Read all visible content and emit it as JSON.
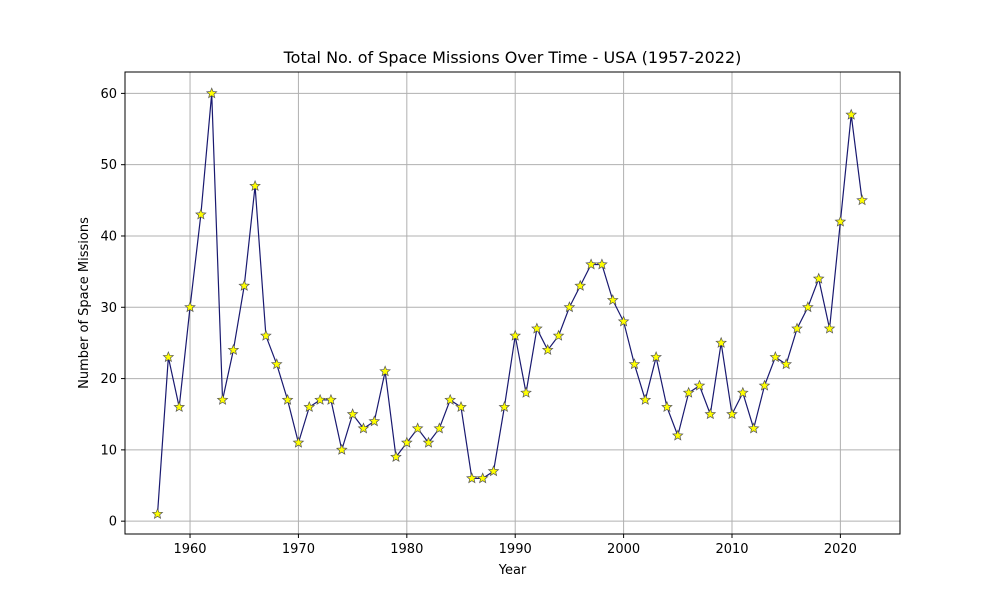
{
  "chart_data": {
    "type": "line",
    "title": "Total No. of Space Missions Over Time - USA (1957-2022)",
    "xlabel": "Year",
    "ylabel": "Number of Space Missions",
    "xlim": [
      1954,
      2025.5
    ],
    "ylim": [
      -1.8,
      63
    ],
    "xticks": [
      1960,
      1970,
      1980,
      1990,
      2000,
      2010,
      2020
    ],
    "yticks": [
      0,
      10,
      20,
      30,
      40,
      50,
      60
    ],
    "grid": true,
    "line_color": "#191970",
    "marker": "star",
    "marker_fill": "#ffff00",
    "marker_edge": "#555555",
    "series": [
      {
        "x": [
          1957,
          1958,
          1959,
          1960,
          1961,
          1962,
          1963,
          1964,
          1965,
          1966,
          1967,
          1968,
          1969,
          1970,
          1971,
          1972,
          1973,
          1974,
          1975,
          1976,
          1977,
          1978,
          1979,
          1980,
          1981,
          1982,
          1983,
          1984,
          1985,
          1986,
          1987,
          1988,
          1989,
          1990,
          1991,
          1992,
          1993,
          1994,
          1995,
          1996,
          1997,
          1998,
          1999,
          2000,
          2001,
          2002,
          2003,
          2004,
          2005,
          2006,
          2007,
          2008,
          2009,
          2010,
          2011,
          2012,
          2013,
          2014,
          2015,
          2016,
          2017,
          2018,
          2019,
          2020,
          2021,
          2022
        ],
        "values": [
          1,
          23,
          16,
          30,
          43,
          60,
          17,
          24,
          33,
          47,
          26,
          22,
          17,
          11,
          16,
          17,
          17,
          10,
          15,
          13,
          14,
          21,
          9,
          11,
          13,
          11,
          13,
          17,
          16,
          6,
          6,
          7,
          16,
          26,
          18,
          27,
          24,
          26,
          30,
          33,
          36,
          36,
          31,
          28,
          22,
          17,
          23,
          16,
          12,
          18,
          19,
          15,
          25,
          15,
          18,
          13,
          19,
          23,
          22,
          27,
          30,
          34,
          27,
          42,
          57,
          45
        ]
      }
    ]
  }
}
